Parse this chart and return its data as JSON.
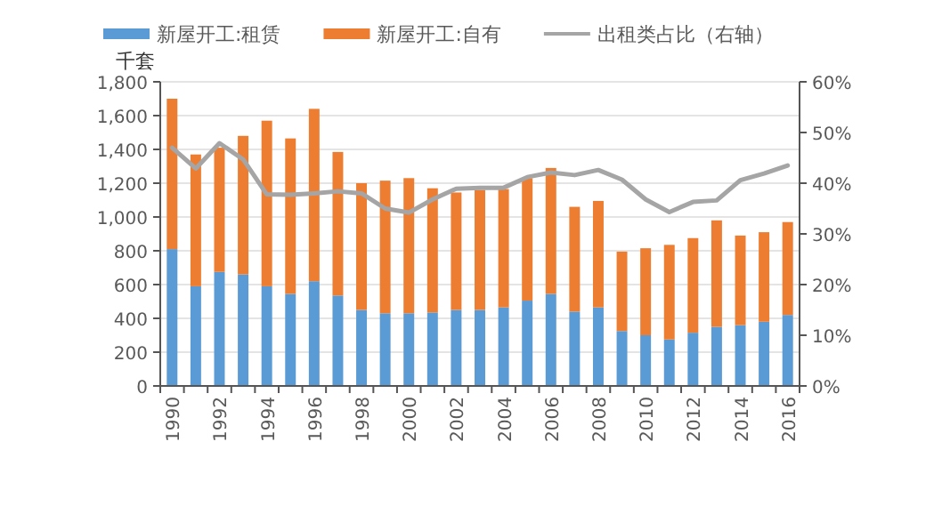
{
  "chart_data": {
    "type": "bar",
    "stacked": true,
    "ylabel": "千套",
    "legend": "top",
    "grid": "y",
    "categories": [
      "1990",
      null,
      "1992",
      null,
      "1994",
      null,
      "1996",
      null,
      "1998",
      null,
      "2000",
      null,
      "2002",
      null,
      "2004",
      null,
      "2006",
      null,
      "2008",
      null,
      "2010",
      null,
      "2012",
      null,
      "2014",
      null,
      "2016"
    ],
    "series": [
      {
        "name": "新屋开工:租赁",
        "color": "#5b9bd5",
        "values": [
          810,
          590,
          675,
          660,
          590,
          545,
          620,
          535,
          450,
          430,
          430,
          435,
          450,
          450,
          465,
          505,
          545,
          440,
          465,
          325,
          300,
          275,
          315,
          350,
          360,
          380,
          420
        ]
      },
      {
        "name": "新屋开工:自有",
        "color": "#ed7d31",
        "values": [
          890,
          780,
          735,
          820,
          980,
          920,
          1020,
          850,
          750,
          785,
          800,
          735,
          695,
          710,
          700,
          725,
          745,
          620,
          630,
          470,
          515,
          560,
          560,
          630,
          530,
          530,
          550
        ]
      },
      {
        "name": "出租类占比（右轴）",
        "type": "line",
        "axis": "y2",
        "color": "#a5a5a5",
        "values": [
          47.0,
          42.9,
          47.9,
          44.7,
          37.8,
          37.7,
          38.0,
          38.4,
          38.0,
          35.0,
          34.2,
          36.8,
          38.9,
          39.1,
          39.1,
          41.2,
          42.1,
          41.6,
          42.6,
          40.7,
          36.8,
          34.3,
          36.3,
          36.6,
          40.6,
          41.9,
          43.5
        ]
      }
    ],
    "ylim": [
      0,
      1800
    ],
    "yticks": [
      0,
      200,
      400,
      600,
      800,
      {
        "value": 1000,
        "label": "1,000"
      },
      {
        "value": 1200,
        "label": "1,200"
      },
      {
        "value": 1400,
        "label": "1,400"
      },
      {
        "value": 1600,
        "label": "1,600"
      },
      {
        "value": 1800,
        "label": "1,800"
      }
    ],
    "y2lim": [
      0,
      60
    ],
    "y2ticks": [
      {
        "value": 0,
        "label": "0%"
      },
      {
        "value": 10,
        "label": "10%"
      },
      {
        "value": 20,
        "label": "20%"
      },
      {
        "value": 30,
        "label": "30%"
      },
      {
        "value": 40,
        "label": "40%"
      },
      {
        "value": 50,
        "label": "50%"
      },
      {
        "value": 60,
        "label": "60%"
      }
    ]
  }
}
